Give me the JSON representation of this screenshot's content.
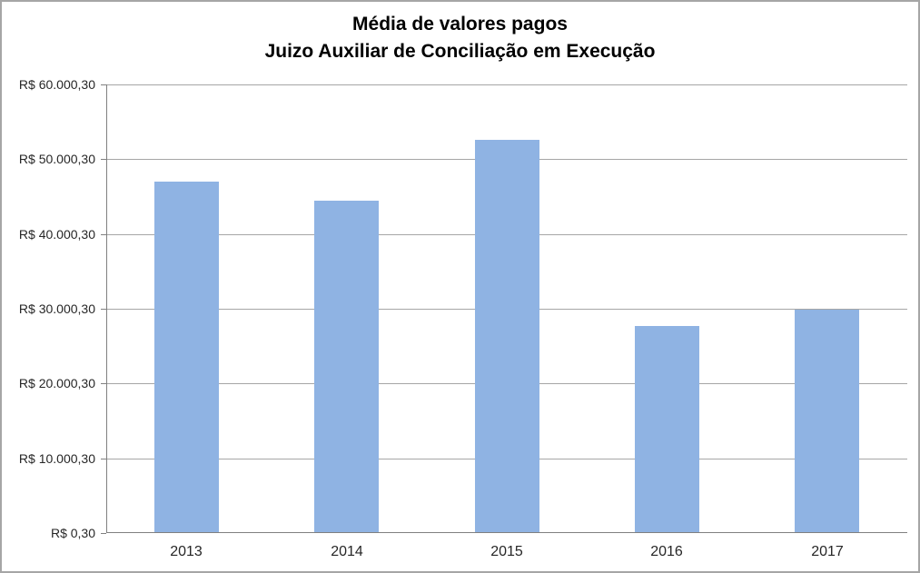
{
  "title": {
    "line1": "Média de valores pagos",
    "line2": "Juizo Auxiliar de Conciliação em Execução"
  },
  "chart_data": {
    "type": "bar",
    "title": "Média de valores pagos",
    "subtitle": "Juizo Auxiliar de Conciliação em Execução",
    "categories": [
      "2013",
      "2014",
      "2015",
      "2016",
      "2017"
    ],
    "values": [
      46900,
      44300,
      52500,
      27600,
      29800
    ],
    "xlabel": "",
    "ylabel": "",
    "y_axis": {
      "min": 0.3,
      "max": 60000.3,
      "tick_interval": 10000,
      "tick_values": [
        60000.3,
        50000.3,
        40000.3,
        30000.3,
        20000.3,
        10000.3,
        0.3
      ],
      "tick_labels": [
        "R$ 60.000,30",
        "R$ 50.000,30",
        "R$ 40.000,30",
        "R$ 30.000,30",
        "R$ 20.000,30",
        "R$ 10.000,30",
        "R$ 0,30"
      ]
    },
    "grid": true,
    "legend": false,
    "colors": {
      "bar_fill": "#8fb3e3",
      "grid_line": "#a6a6a6",
      "axis_line": "#808080",
      "label_text": "#262626",
      "title_text": "#000000"
    }
  }
}
